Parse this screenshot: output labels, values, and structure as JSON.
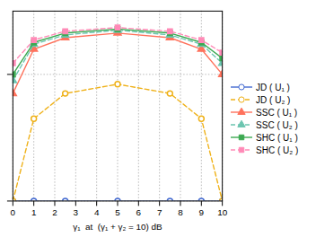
{
  "chart_data": {
    "type": "line",
    "x": [
      0,
      1,
      2.5,
      5,
      7.5,
      9,
      10
    ],
    "series": [
      {
        "name": "JD ( U₁ )",
        "values": [
          1e-09,
          1e-09,
          1e-09,
          1e-09,
          1e-09,
          1e-09,
          1e-09
        ],
        "marker": "circle-open",
        "line_style": "solid"
      },
      {
        "name": "JD ( U₂ )",
        "values": [
          1e-09,
          2e-08,
          5e-08,
          7e-08,
          5e-08,
          2e-08,
          1e-09
        ],
        "marker": "circle-open",
        "line_style": "dashed"
      },
      {
        "name": "SSC ( U₁ )",
        "values": [
          5e-08,
          2.5e-07,
          3.8e-07,
          4.5e-07,
          3.8e-07,
          2.5e-07,
          1e-07
        ],
        "marker": "triangle",
        "line_style": "solid"
      },
      {
        "name": "SSC ( U₂ )",
        "values": [
          8e-08,
          3e-07,
          4.2e-07,
          5e-07,
          4.2e-07,
          3e-07,
          1.5e-07
        ],
        "marker": "triangle",
        "line_style": "dashed"
      },
      {
        "name": "SHC ( U₁ )",
        "values": [
          1e-07,
          3.2e-07,
          4.5e-07,
          5.2e-07,
          4.5e-07,
          3.2e-07,
          1.8e-07
        ],
        "marker": "square",
        "line_style": "solid"
      },
      {
        "name": "SHC ( U₂ )",
        "values": [
          1.5e-07,
          3.5e-07,
          4.8e-07,
          5.5e-07,
          4.8e-07,
          3.5e-07,
          2.2e-07
        ],
        "marker": "square",
        "line_style": "dashed"
      }
    ],
    "xlabel": "γ₁  at  (γ₁ + γ₂ = 10) dB",
    "xlim": [
      0,
      10
    ],
    "ylim": [
      1e-09,
      1e-06
    ],
    "xticks": [
      0,
      1,
      2,
      3,
      4,
      5,
      6,
      7,
      8,
      9,
      10
    ],
    "yticks": [
      1e-09,
      1e-07
    ],
    "log": "y",
    "grid": true,
    "legend": "right",
    "tick_labels": "x"
  }
}
